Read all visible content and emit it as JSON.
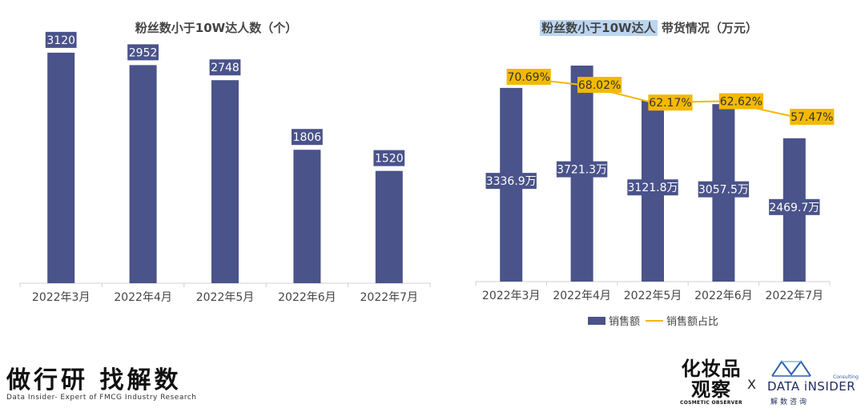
{
  "chart_data": [
    {
      "type": "bar",
      "title": "粉丝数小于10W达人数（个）",
      "categories": [
        "2022年3月",
        "2022年4月",
        "2022年5月",
        "2022年6月",
        "2022年7月"
      ],
      "values": [
        3120,
        2952,
        2748,
        1806,
        1520
      ],
      "data_labels": [
        "3120",
        "2952",
        "2748",
        "1806",
        "1520"
      ],
      "ylim": [
        0,
        3400
      ],
      "grid": false,
      "bar_color": "#4a538a"
    },
    {
      "type": "bar",
      "title_highlight": "粉丝数小于10W达人",
      "title_rest": " 带货情况（万元）",
      "categories": [
        "2022年3月",
        "2022年4月",
        "2022年5月",
        "2022年6月",
        "2022年7月"
      ],
      "series": [
        {
          "name": "销售额",
          "type": "bar",
          "values": [
            3336.9,
            3721.3,
            3121.8,
            3057.5,
            2469.7
          ],
          "data_labels": [
            "3336.9万",
            "3721.3万",
            "3121.8万",
            "3057.5万",
            "2469.7万"
          ],
          "color": "#4a538a"
        },
        {
          "name": "销售额占比",
          "type": "line",
          "values": [
            70.69,
            68.02,
            62.17,
            62.62,
            57.47
          ],
          "data_labels": [
            "70.69%",
            "68.02%",
            "62.17%",
            "62.62%",
            "57.47%"
          ],
          "color": "#f5b800"
        }
      ],
      "ylim": [
        0,
        3721.3
      ],
      "y2lim": [
        0,
        80
      ],
      "legend_position": "bottom",
      "grid": false
    }
  ],
  "footer": {
    "left_main": "做行研 找解数",
    "left_sub": "Data Insider- Expert of FMCG Industry Research",
    "brand1_cn_line1": "化妆品",
    "brand1_cn_line2": "观察",
    "brand1_en": "COSMETIC OBSERVER",
    "separator": "X",
    "brand2_main": "DATA iNSIDER",
    "brand2_cn": "解数咨询",
    "brand2_small": "Consulting"
  }
}
